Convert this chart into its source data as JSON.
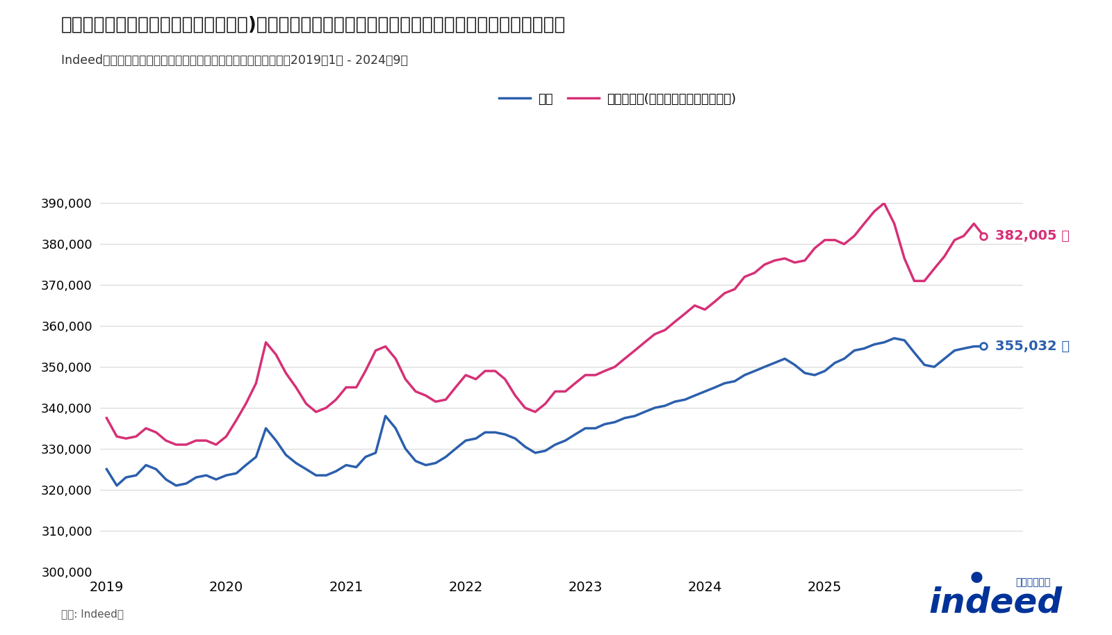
{
  "title": "三大都市圏（東京都・大阪府・愛知県)での検索賃金のトレンドも、全国のトレンドに概ね沿っている",
  "subtitle": "Indeed上で検索された月給の加重平均値、三大都市圏及び全国、2019年1月 - 2024年9月",
  "source_text": "出所: Indeed。",
  "legend_national": "全国",
  "legend_metro": "三大都市圏(東京都、大阪府、愛知県)",
  "color_national": "#2b5fad",
  "color_metro": "#d63077",
  "end_label_national": "355,032 円",
  "end_label_metro": "382,005 円",
  "ylim_min": 300000,
  "ylim_max": 390000,
  "ytick_step": 10000,
  "bg_color": "#ffffff",
  "plot_bg_color": "#ffffff",
  "indeed_blue": "#003399",
  "national": [
    325000,
    321000,
    323000,
    323500,
    326000,
    325000,
    322500,
    321000,
    321500,
    323000,
    323500,
    322500,
    323500,
    324000,
    326000,
    328000,
    335000,
    332000,
    328500,
    326500,
    325000,
    323500,
    323500,
    324500,
    326000,
    325500,
    328000,
    329000,
    338000,
    335000,
    330000,
    327000,
    326000,
    326500,
    328000,
    330000,
    332000,
    332500,
    334000,
    334000,
    333500,
    332500,
    330500,
    329000,
    329500,
    331000,
    332000,
    333500,
    335000,
    335000,
    336000,
    336500,
    337500,
    338000,
    339000,
    340000,
    340500,
    341500,
    342000,
    343000,
    344000,
    345000,
    346000,
    346500,
    348000,
    349000,
    350000,
    351000,
    352000,
    350500,
    348500,
    348000,
    349000,
    351000,
    352000,
    354000,
    354500,
    355500,
    356000,
    357000,
    356500,
    353500,
    350500,
    350000,
    352000,
    354000,
    354500,
    355000,
    355032
  ],
  "metro": [
    337500,
    333000,
    332500,
    333000,
    335000,
    334000,
    332000,
    331000,
    331000,
    332000,
    332000,
    331000,
    333000,
    337000,
    341000,
    346000,
    356000,
    353000,
    348500,
    345000,
    341000,
    339000,
    340000,
    342000,
    345000,
    345000,
    349000,
    354000,
    355000,
    352000,
    347000,
    344000,
    343000,
    341500,
    342000,
    345000,
    348000,
    347000,
    349000,
    349000,
    347000,
    343000,
    340000,
    339000,
    341000,
    344000,
    344000,
    346000,
    348000,
    348000,
    349000,
    350000,
    352000,
    354000,
    356000,
    358000,
    359000,
    361000,
    363000,
    365000,
    364000,
    366000,
    368000,
    369000,
    372000,
    373000,
    375000,
    376000,
    376500,
    375500,
    376000,
    379000,
    381000,
    381000,
    380000,
    382000,
    385000,
    388000,
    390000,
    385000,
    376500,
    371000,
    371000,
    374000,
    377000,
    381000,
    382000,
    385000,
    382005
  ]
}
